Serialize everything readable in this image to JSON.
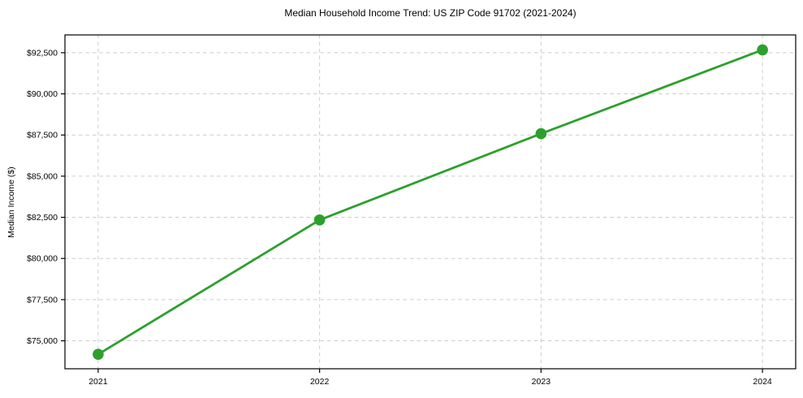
{
  "chart_data": {
    "type": "line",
    "title": "Median Household Income Trend: US ZIP Code 91702 (2021-2024)",
    "xlabel": "",
    "ylabel": "Median Income ($)",
    "x": [
      2021,
      2022,
      2023,
      2024
    ],
    "x_tick_labels": [
      "2021",
      "2022",
      "2023",
      "2024"
    ],
    "series": [
      {
        "name": "Median Household Income",
        "values": [
          74180,
          82340,
          87580,
          92670
        ]
      }
    ],
    "y_ticks": [
      75000,
      77500,
      80000,
      82500,
      85000,
      87500,
      90000,
      92500
    ],
    "y_tick_labels": [
      "$75,000",
      "$77,500",
      "$80,000",
      "$82,500",
      "$85,000",
      "$87,500",
      "$90,000",
      "$92,500"
    ],
    "xlim": [
      2020.85,
      2024.15
    ],
    "ylim": [
      73300,
      93580
    ],
    "grid": true,
    "legend": "none",
    "colors": {
      "line": "#2ca02c",
      "marker": "#2ca02c",
      "grid": "#cccccc",
      "spine": "#000000",
      "background": "#ffffff"
    }
  }
}
